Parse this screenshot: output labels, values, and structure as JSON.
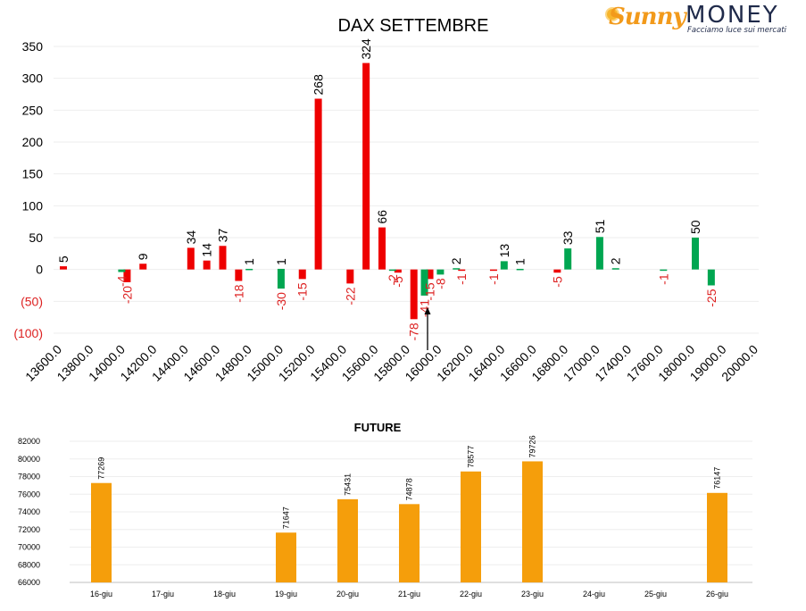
{
  "logo": {
    "sunny": "Sunny",
    "money": "MONEY",
    "tagline": "Facciamo luce sui mercati"
  },
  "colors": {
    "red": "#ee0000",
    "green": "#00a651",
    "orange": "#f59e0b",
    "negative_label": "#dd2222",
    "text": "#000000"
  },
  "chart_data": [
    {
      "type": "bar",
      "title": "DAX SETTEMBRE",
      "ylim": [
        -100,
        350
      ],
      "yticks": [
        "(100)",
        "(50)",
        "0",
        "50",
        "100",
        "150",
        "200",
        "250",
        "300",
        "350"
      ],
      "xticks": [
        "13600.0",
        "13800.0",
        "14000.0",
        "14200.0",
        "14400.0",
        "14600.0",
        "14800.0",
        "15000.0",
        "15200.0",
        "15400.0",
        "15600.0",
        "15800.0",
        "16000.0",
        "16200.0",
        "16400.0",
        "16600.0",
        "16800.0",
        "17000.0",
        "17400.0",
        "17600.0",
        "18000.0",
        "19000.0",
        "20000.0"
      ],
      "series": [
        {
          "color": "#ee0000",
          "points": [
            {
              "x": "13600.0",
              "y": 5
            },
            {
              "x": "14000.0",
              "y": -20
            },
            {
              "x": "14100.0",
              "y": 9
            },
            {
              "x": "14400.0",
              "y": 34
            },
            {
              "x": "14500.0",
              "y": 14
            },
            {
              "x": "14600.0",
              "y": 37
            },
            {
              "x": "14700.0",
              "y": -18
            },
            {
              "x": "15100.0",
              "y": -15
            },
            {
              "x": "15200.0",
              "y": 268
            },
            {
              "x": "15400.0",
              "y": -22
            },
            {
              "x": "15500.0",
              "y": 324
            },
            {
              "x": "15600.0",
              "y": 66
            },
            {
              "x": "15700.0",
              "y": -5
            },
            {
              "x": "15800.0",
              "y": -78
            },
            {
              "x": "15900.0",
              "y": -15
            },
            {
              "x": "16100.0",
              "y": -1
            },
            {
              "x": "16300.0",
              "y": -1
            },
            {
              "x": "16700.0",
              "y": -5
            }
          ]
        },
        {
          "color": "#00a651",
          "points": [
            {
              "x": "14000.0",
              "y": -4
            },
            {
              "x": "14800.0",
              "y": 1
            },
            {
              "x": "15000.0",
              "y": -30
            },
            {
              "x": "15000.0",
              "y": 1
            },
            {
              "x": "15700.0",
              "y": -2
            },
            {
              "x": "15900.0",
              "y": -41
            },
            {
              "x": "16000.0",
              "y": -8
            },
            {
              "x": "16100.0",
              "y": 2
            },
            {
              "x": "16400.0",
              "y": 13
            },
            {
              "x": "16500.0",
              "y": 1
            },
            {
              "x": "16800.0",
              "y": 33
            },
            {
              "x": "17000.0",
              "y": 51
            },
            {
              "x": "17100.0",
              "y": 2
            },
            {
              "x": "17400.0",
              "y": -1
            },
            {
              "x": "17600.0",
              "y": 50
            },
            {
              "x": "17700.0",
              "y": -25
            }
          ]
        }
      ],
      "annotations": [
        {
          "type": "arrow",
          "x": "15900.0",
          "direction": "up"
        }
      ]
    },
    {
      "type": "bar",
      "title": "FUTURE",
      "ylim": [
        66000,
        82000
      ],
      "yticks": [
        "66000",
        "68000",
        "70000",
        "72000",
        "74000",
        "76000",
        "78000",
        "80000",
        "82000"
      ],
      "categories": [
        "16-giu",
        "17-giu",
        "18-giu",
        "19-giu",
        "20-giu",
        "21-giu",
        "22-giu",
        "23-giu",
        "24-giu",
        "25-giu",
        "26-giu"
      ],
      "values": [
        77269,
        null,
        null,
        71647,
        75431,
        74878,
        78577,
        79726,
        null,
        null,
        76147
      ],
      "color": "#f59e0b"
    }
  ]
}
